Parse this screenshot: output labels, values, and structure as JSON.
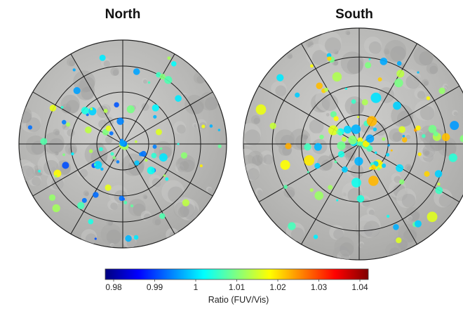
{
  "panels": [
    {
      "title": "North"
    },
    {
      "title": "South"
    }
  ],
  "colorbar": {
    "title": "Ratio (FUV/Vis)",
    "ticks": [
      "0.98",
      "0.99",
      "1",
      "1.01",
      "1.02",
      "1.03",
      "1.04"
    ],
    "range": [
      0.98,
      1.04
    ],
    "colormap": "jet",
    "colors": [
      "#00007f",
      "#0000ff",
      "#0080ff",
      "#00ffff",
      "#80ff80",
      "#ffff00",
      "#ff8000",
      "#ff0000",
      "#7f0000"
    ]
  },
  "map": {
    "projection": "polar stereographic",
    "latitude_rings": 4,
    "meridians": 12,
    "basemap_color": "#b9b9b7"
  }
}
